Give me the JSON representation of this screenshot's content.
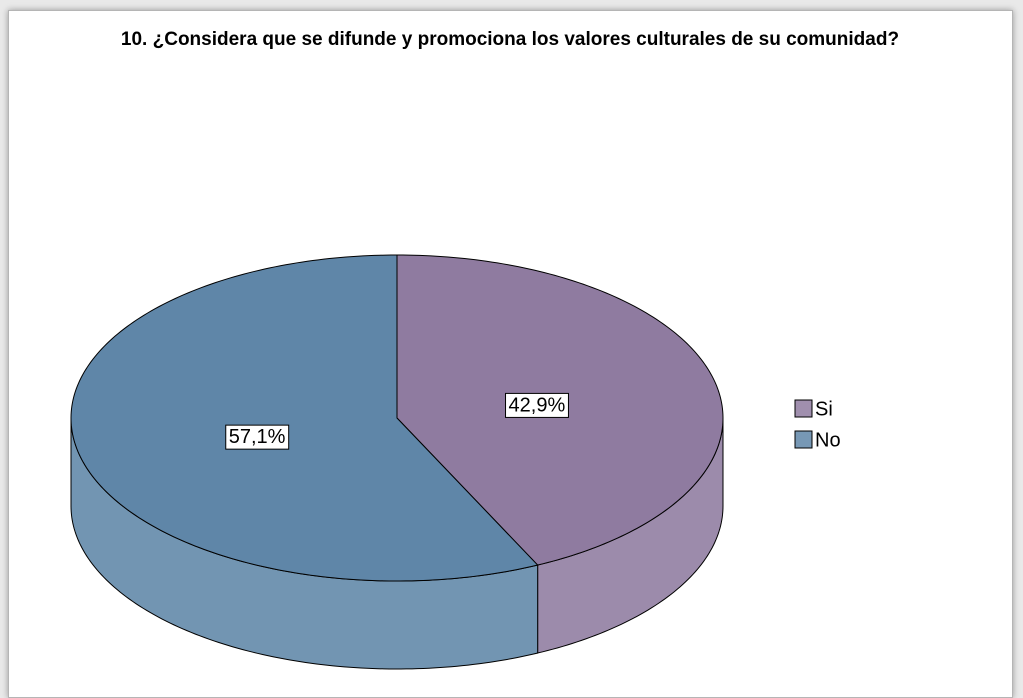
{
  "chart_data": {
    "type": "pie",
    "title": "10. ¿Considera que se difunde y promociona los valores culturales de su comunidad?",
    "categories": [
      "Si",
      "No"
    ],
    "values": [
      42.9,
      57.1
    ],
    "value_labels": [
      "42,9%",
      "57,1%"
    ],
    "colors": [
      "#8f7ba0",
      "#5f86a8"
    ],
    "legend": "right"
  }
}
